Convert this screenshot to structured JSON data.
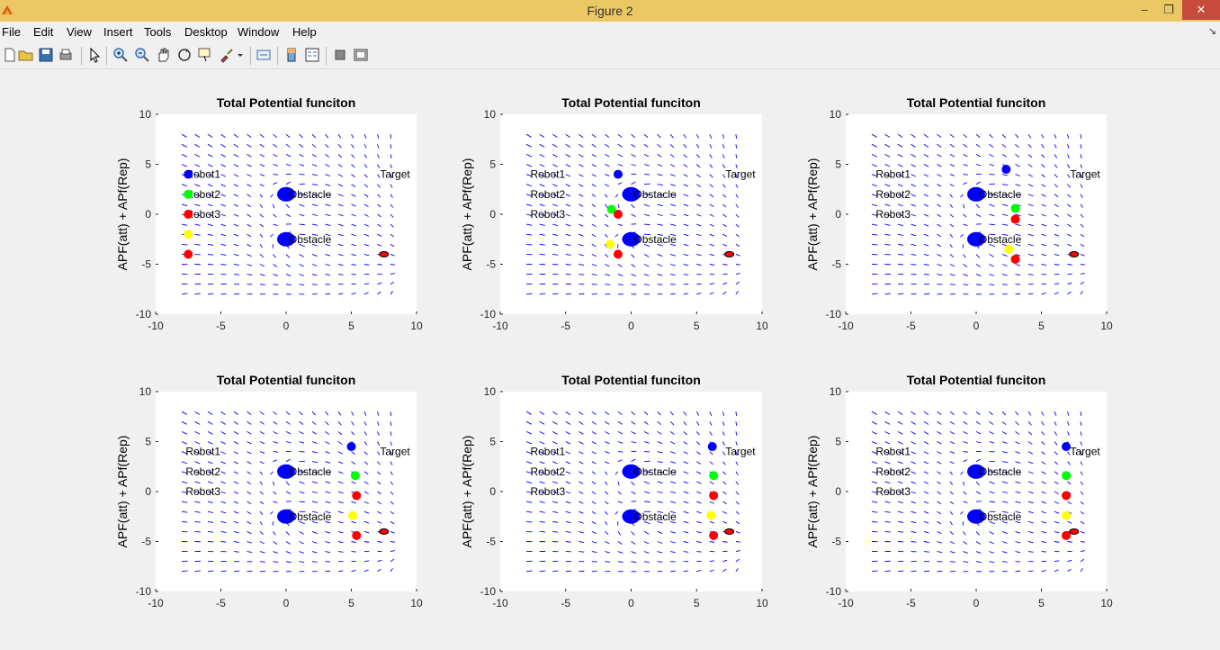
{
  "window": {
    "title": "Figure 2",
    "minimize_glyph": "–",
    "maximize_glyph": "❐",
    "close_glyph": "✕"
  },
  "menu": {
    "items": [
      {
        "id": "file",
        "label": "File"
      },
      {
        "id": "edit",
        "label": "Edit"
      },
      {
        "id": "view",
        "label": "View"
      },
      {
        "id": "insert",
        "label": "Insert"
      },
      {
        "id": "tools",
        "label": "Tools"
      },
      {
        "id": "desktop",
        "label": "Desktop"
      },
      {
        "id": "window",
        "label": "Window"
      },
      {
        "id": "help",
        "label": "Help"
      }
    ],
    "overflow_glyph": "↘"
  },
  "toolbar": {
    "icons": [
      "new-figure-icon",
      "open-file-icon",
      "save-icon",
      "print-icon",
      "pointer-icon",
      "zoom-in-icon",
      "zoom-out-icon",
      "pan-hand-icon",
      "rotate-3d-icon",
      "data-cursor-icon",
      "brush-icon",
      "brush-dropdown-icon",
      "link-plot-icon",
      "insert-colorbar-icon",
      "insert-legend-icon",
      "hide-plot-tools-icon",
      "show-plot-tools-icon"
    ]
  },
  "colors": {
    "robot1": "#0000ff",
    "robot2": "#00ff00",
    "robot3": "#ff0000",
    "yellow_robot": "#ffff00",
    "red_robot": "#ff0000",
    "obstacle": "#0000ff",
    "field_arrow": "#0000ff",
    "target": "#ff0000"
  },
  "chart_data": [
    {
      "type": "scatter",
      "title": "Total Potential funciton",
      "ylabel": "APF(att) + APf(Rep)",
      "xlabel": "",
      "xlim": [
        -10,
        10
      ],
      "ylim": [
        -10,
        10
      ],
      "xticks": [
        -10,
        -5,
        0,
        5,
        10
      ],
      "yticks": [
        -10,
        -5,
        0,
        5,
        10
      ],
      "labels": [
        "Robot1",
        "Robot2",
        "Robot3",
        "Obstacle",
        "Obstacle",
        "Target"
      ],
      "obstacles": [
        [
          0,
          2
        ],
        [
          0,
          -2.5
        ]
      ],
      "target": [
        7.5,
        -4
      ],
      "robots": [
        {
          "color": "blue",
          "x": -7.5,
          "y": 4
        },
        {
          "color": "green",
          "x": -7.5,
          "y": 2
        },
        {
          "color": "red",
          "x": -7.5,
          "y": 0
        },
        {
          "color": "yellow",
          "x": -7.5,
          "y": -2
        },
        {
          "color": "red",
          "x": -7.5,
          "y": -4
        }
      ]
    },
    {
      "type": "scatter",
      "title": "Total Potential funciton",
      "ylabel": "APF(att) + APf(Rep)",
      "xlabel": "",
      "xlim": [
        -10,
        10
      ],
      "ylim": [
        -10,
        10
      ],
      "xticks": [
        -10,
        -5,
        0,
        5,
        10
      ],
      "yticks": [
        -10,
        -5,
        0,
        5,
        10
      ],
      "labels": [
        "Robot1",
        "Robot2",
        "Robot3",
        "Obstacle",
        "Obstacle",
        "Target"
      ],
      "obstacles": [
        [
          0,
          2
        ],
        [
          0,
          -2.5
        ]
      ],
      "target": [
        7.5,
        -4
      ],
      "robots": [
        {
          "color": "blue",
          "x": -1,
          "y": 4
        },
        {
          "color": "green",
          "x": -1.5,
          "y": 0.5
        },
        {
          "color": "red",
          "x": -1,
          "y": 0
        },
        {
          "color": "yellow",
          "x": -1.6,
          "y": -3
        },
        {
          "color": "red",
          "x": -1,
          "y": -4
        }
      ]
    },
    {
      "type": "scatter",
      "title": "Total Potential funciton",
      "ylabel": "APF(att) + APf(Rep)",
      "xlabel": "",
      "xlim": [
        -10,
        10
      ],
      "ylim": [
        -10,
        10
      ],
      "xticks": [
        -10,
        -5,
        0,
        5,
        10
      ],
      "yticks": [
        -10,
        -5,
        0,
        5,
        10
      ],
      "labels": [
        "Robot1",
        "Robot2",
        "Robot3",
        "Obstacle",
        "Obstacle",
        "Target"
      ],
      "obstacles": [
        [
          0,
          2
        ],
        [
          0,
          -2.5
        ]
      ],
      "target": [
        7.5,
        -4
      ],
      "robots": [
        {
          "color": "blue",
          "x": 2.3,
          "y": 4.5
        },
        {
          "color": "green",
          "x": 3,
          "y": 0.6
        },
        {
          "color": "red",
          "x": 3,
          "y": -0.5
        },
        {
          "color": "yellow",
          "x": 2.5,
          "y": -3.5
        },
        {
          "color": "red",
          "x": 3,
          "y": -4.5
        }
      ]
    },
    {
      "type": "scatter",
      "title": "Total Potential funciton",
      "ylabel": "APF(att) + APf(Rep)",
      "xlabel": "",
      "xlim": [
        -10,
        10
      ],
      "ylim": [
        -10,
        10
      ],
      "xticks": [
        -10,
        -5,
        0,
        5,
        10
      ],
      "yticks": [
        -10,
        -5,
        0,
        5,
        10
      ],
      "labels": [
        "Robot1",
        "Robot2",
        "Robot3",
        "Obstacle",
        "Obstacle",
        "Target"
      ],
      "obstacles": [
        [
          0,
          2
        ],
        [
          0,
          -2.5
        ]
      ],
      "target": [
        7.5,
        -4
      ],
      "robots": [
        {
          "color": "blue",
          "x": 5,
          "y": 4.5
        },
        {
          "color": "green",
          "x": 5.3,
          "y": 1.6
        },
        {
          "color": "red",
          "x": 5.4,
          "y": -0.4
        },
        {
          "color": "yellow",
          "x": 5.1,
          "y": -2.4
        },
        {
          "color": "red",
          "x": 5.4,
          "y": -4.4
        }
      ]
    },
    {
      "type": "scatter",
      "title": "Total Potential funciton",
      "ylabel": "APF(att) + APf(Rep)",
      "xlabel": "",
      "xlim": [
        -10,
        10
      ],
      "ylim": [
        -10,
        10
      ],
      "xticks": [
        -10,
        -5,
        0,
        5,
        10
      ],
      "yticks": [
        -10,
        -5,
        0,
        5,
        10
      ],
      "labels": [
        "Robot1",
        "Robot2",
        "Robot3",
        "Obstacle",
        "Obstacle",
        "Target"
      ],
      "obstacles": [
        [
          0,
          2
        ],
        [
          0,
          -2.5
        ]
      ],
      "target": [
        7.5,
        -4
      ],
      "robots": [
        {
          "color": "blue",
          "x": 6.2,
          "y": 4.5
        },
        {
          "color": "green",
          "x": 6.3,
          "y": 1.6
        },
        {
          "color": "red",
          "x": 6.3,
          "y": -0.4
        },
        {
          "color": "yellow",
          "x": 6.1,
          "y": -2.4
        },
        {
          "color": "red",
          "x": 6.3,
          "y": -4.4
        }
      ]
    },
    {
      "type": "scatter",
      "title": "Total Potential funciton",
      "ylabel": "APF(att) + APf(Rep)",
      "xlabel": "",
      "xlim": [
        -10,
        10
      ],
      "ylim": [
        -10,
        10
      ],
      "xticks": [
        -10,
        -5,
        0,
        5,
        10
      ],
      "yticks": [
        -10,
        -5,
        0,
        5,
        10
      ],
      "labels": [
        "Robot1",
        "Robot2",
        "Robot3",
        "Obstacle",
        "Obstacle",
        "Target"
      ],
      "obstacles": [
        [
          0,
          2
        ],
        [
          0,
          -2.5
        ]
      ],
      "target": [
        7.5,
        -4
      ],
      "robots": [
        {
          "color": "blue",
          "x": 6.9,
          "y": 4.5
        },
        {
          "color": "green",
          "x": 6.9,
          "y": 1.6
        },
        {
          "color": "red",
          "x": 6.9,
          "y": -0.4
        },
        {
          "color": "yellow",
          "x": 6.9,
          "y": -2.4
        },
        {
          "color": "red",
          "x": 6.9,
          "y": -4.4
        }
      ]
    }
  ]
}
